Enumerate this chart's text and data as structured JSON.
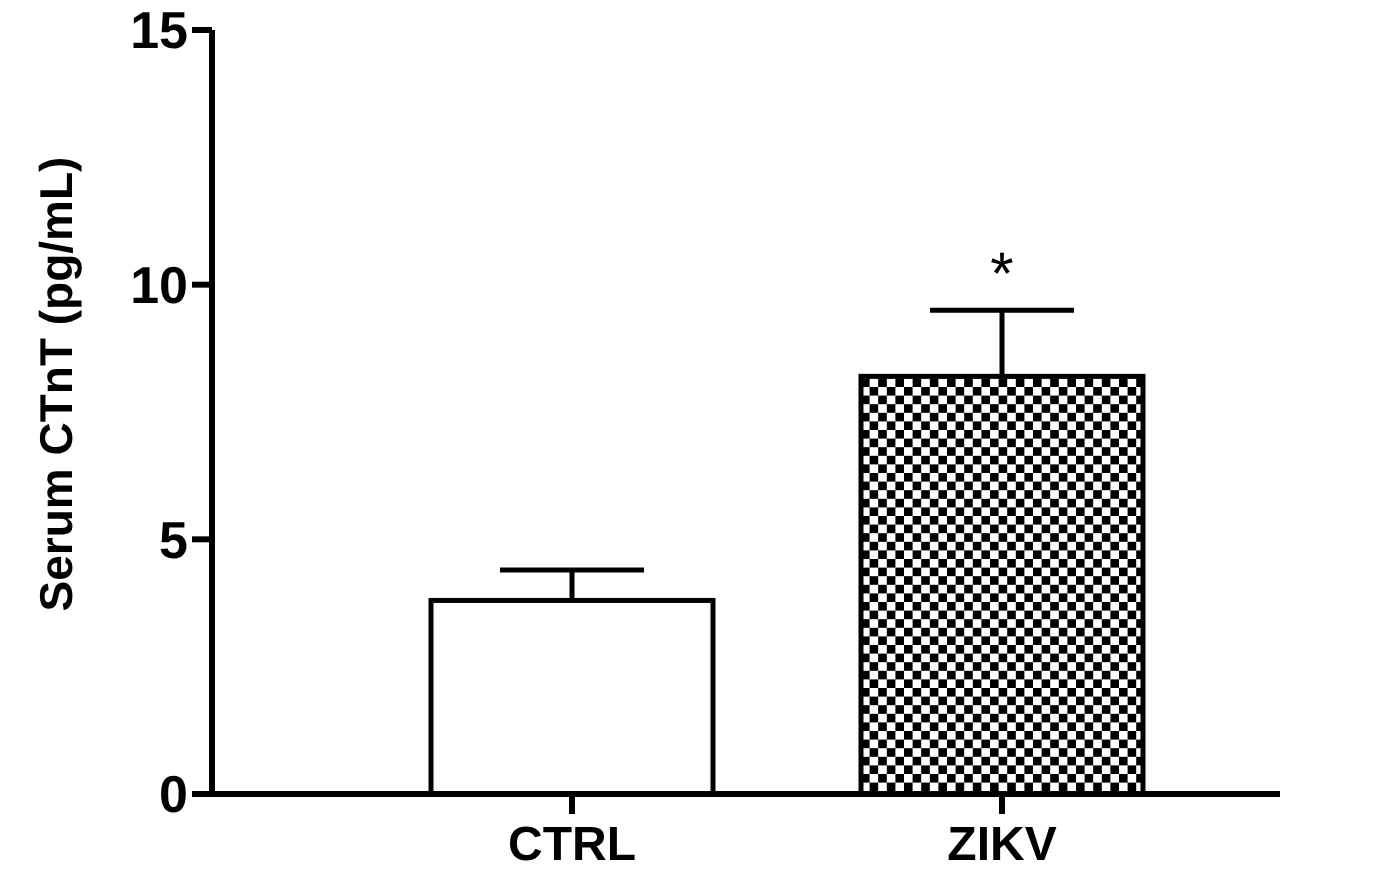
{
  "chart_data": {
    "type": "bar",
    "ylabel": "Serum CTnT (pg/mL)",
    "categories": [
      "CTRL",
      "ZIKV"
    ],
    "values": [
      3.8,
      8.2
    ],
    "colors": [
      "#ffffff",
      "#000000"
    ],
    "errors": [
      [
        3.8,
        4.4
      ],
      [
        8.2,
        9.5
      ]
    ],
    "ylim": [
      0,
      15
    ],
    "yticks": [
      0,
      5,
      10,
      15
    ],
    "annotations": [
      "*"
    ]
  }
}
